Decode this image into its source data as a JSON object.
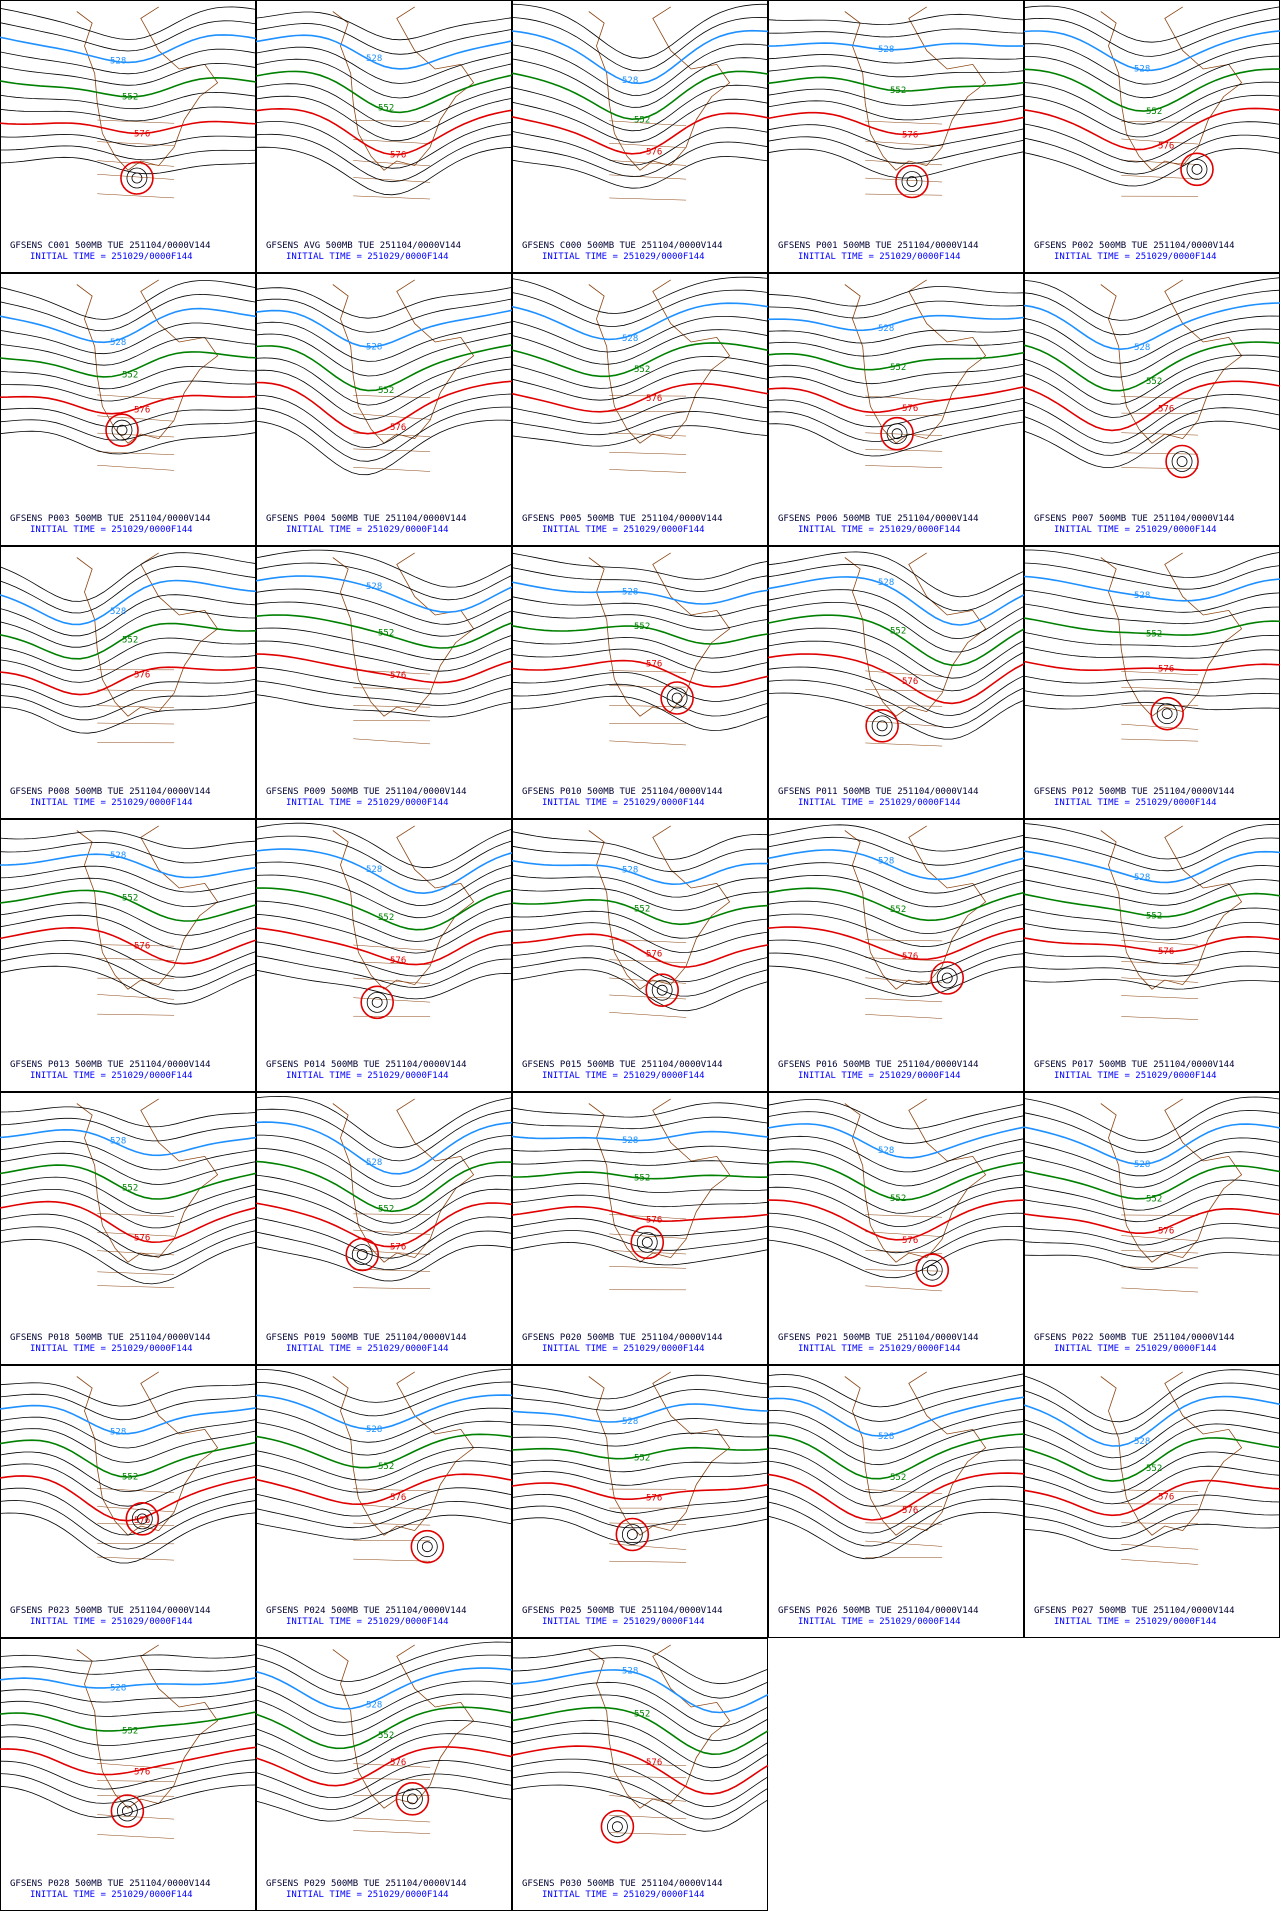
{
  "panels": [
    {
      "title": "GFSENS C001 500MB TUE 251104/0000V144",
      "init": "INITIAL TIME = 251029/0000F144",
      "labels": [
        "528",
        "552",
        "576"
      ]
    },
    {
      "title": "GFSENS AVG 500MB TUE 251104/0000V144",
      "init": "INITIAL TIME = 251029/0000F144",
      "labels": [
        "528",
        "552",
        "576"
      ]
    },
    {
      "title": "GFSENS C000 500MB TUE 251104/0000V144",
      "init": "INITIAL TIME = 251029/0000F144",
      "labels": [
        "528",
        "552",
        "576"
      ]
    },
    {
      "title": "GFSENS P001 500MB TUE 251104/0000V144",
      "init": "INITIAL TIME = 251029/0000F144",
      "labels": [
        "528",
        "552",
        "576"
      ]
    },
    {
      "title": "GFSENS P002 500MB TUE 251104/0000V144",
      "init": "INITIAL TIME = 251029/0000F144",
      "labels": [
        "528",
        "552",
        "576"
      ]
    },
    {
      "title": "GFSENS P003 500MB TUE 251104/0000V144",
      "init": "INITIAL TIME = 251029/0000F144",
      "labels": [
        "528",
        "552",
        "576"
      ]
    },
    {
      "title": "GFSENS P004 500MB TUE 251104/0000V144",
      "init": "INITIAL TIME = 251029/0000F144",
      "labels": [
        "528",
        "552",
        "576"
      ]
    },
    {
      "title": "GFSENS P005 500MB TUE 251104/0000V144",
      "init": "INITIAL TIME = 251029/0000F144",
      "labels": [
        "528",
        "552",
        "576"
      ]
    },
    {
      "title": "GFSENS P006 500MB TUE 251104/0000V144",
      "init": "INITIAL TIME = 251029/0000F144",
      "labels": [
        "528",
        "552",
        "576"
      ]
    },
    {
      "title": "GFSENS P007 500MB TUE 251104/0000V144",
      "init": "INITIAL TIME = 251029/0000F144",
      "labels": [
        "528",
        "552",
        "576"
      ]
    },
    {
      "title": "GFSENS P008 500MB TUE 251104/0000V144",
      "init": "INITIAL TIME = 251029/0000F144",
      "labels": [
        "528",
        "552",
        "576"
      ]
    },
    {
      "title": "GFSENS P009 500MB TUE 251104/0000V144",
      "init": "INITIAL TIME = 251029/0000F144",
      "labels": [
        "528",
        "552",
        "576"
      ]
    },
    {
      "title": "GFSENS P010 500MB TUE 251104/0000V144",
      "init": "INITIAL TIME = 251029/0000F144",
      "labels": [
        "528",
        "552",
        "576"
      ]
    },
    {
      "title": "GFSENS P011 500MB TUE 251104/0000V144",
      "init": "INITIAL TIME = 251029/0000F144",
      "labels": [
        "528",
        "552",
        "576"
      ]
    },
    {
      "title": "GFSENS P012 500MB TUE 251104/0000V144",
      "init": "INITIAL TIME = 251029/0000F144",
      "labels": [
        "528",
        "552",
        "576"
      ]
    },
    {
      "title": "GFSENS P013 500MB TUE 251104/0000V144",
      "init": "INITIAL TIME = 251029/0000F144",
      "labels": [
        "528",
        "552",
        "576"
      ]
    },
    {
      "title": "GFSENS P014 500MB TUE 251104/0000V144",
      "init": "INITIAL TIME = 251029/0000F144",
      "labels": [
        "528",
        "552",
        "576"
      ]
    },
    {
      "title": "GFSENS P015 500MB TUE 251104/0000V144",
      "init": "INITIAL TIME = 251029/0000F144",
      "labels": [
        "528",
        "552",
        "576"
      ]
    },
    {
      "title": "GFSENS P016 500MB TUE 251104/0000V144",
      "init": "INITIAL TIME = 251029/0000F144",
      "labels": [
        "528",
        "552",
        "576"
      ]
    },
    {
      "title": "GFSENS P017 500MB TUE 251104/0000V144",
      "init": "INITIAL TIME = 251029/0000F144",
      "labels": [
        "528",
        "552",
        "576"
      ]
    },
    {
      "title": "GFSENS P018 500MB TUE 251104/0000V144",
      "init": "INITIAL TIME = 251029/0000F144",
      "labels": [
        "528",
        "552",
        "576"
      ]
    },
    {
      "title": "GFSENS P019 500MB TUE 251104/0000V144",
      "init": "INITIAL TIME = 251029/0000F144",
      "labels": [
        "528",
        "552",
        "576"
      ]
    },
    {
      "title": "GFSENS P020 500MB TUE 251104/0000V144",
      "init": "INITIAL TIME = 251029/0000F144",
      "labels": [
        "528",
        "552",
        "576"
      ]
    },
    {
      "title": "GFSENS P021 500MB TUE 251104/0000V144",
      "init": "INITIAL TIME = 251029/0000F144",
      "labels": [
        "528",
        "552",
        "576"
      ]
    },
    {
      "title": "GFSENS P022 500MB TUE 251104/0000V144",
      "init": "INITIAL TIME = 251029/0000F144",
      "labels": [
        "528",
        "552",
        "576"
      ]
    },
    {
      "title": "GFSENS P023 500MB TUE 251104/0000V144",
      "init": "INITIAL TIME = 251029/0000F144",
      "labels": [
        "528",
        "552",
        "576"
      ]
    },
    {
      "title": "GFSENS P024 500MB TUE 251104/0000V144",
      "init": "INITIAL TIME = 251029/0000F144",
      "labels": [
        "528",
        "552",
        "576"
      ]
    },
    {
      "title": "GFSENS P025 500MB TUE 251104/0000V144",
      "init": "INITIAL TIME = 251029/0000F144",
      "labels": [
        "528",
        "552",
        "576"
      ]
    },
    {
      "title": "GFSENS P026 500MB TUE 251104/0000V144",
      "init": "INITIAL TIME = 251029/0000F144",
      "labels": [
        "528",
        "552",
        "576"
      ]
    },
    {
      "title": "GFSENS P027 500MB TUE 251104/0000V144",
      "init": "INITIAL TIME = 251029/0000F144",
      "labels": [
        "528",
        "552",
        "576"
      ]
    },
    {
      "title": "GFSENS P028 500MB TUE 251104/0000V144",
      "init": "INITIAL TIME = 251029/0000F144",
      "labels": [
        "528",
        "552",
        "576"
      ]
    },
    {
      "title": "GFSENS P029 500MB TUE 251104/0000V144",
      "init": "INITIAL TIME = 251029/0000F144",
      "labels": [
        "528",
        "552",
        "576"
      ]
    },
    {
      "title": "GFSENS P030 500MB TUE 251104/0000V144",
      "init": "INITIAL TIME = 251029/0000F144",
      "labels": [
        "528",
        "552",
        "576"
      ]
    }
  ]
}
